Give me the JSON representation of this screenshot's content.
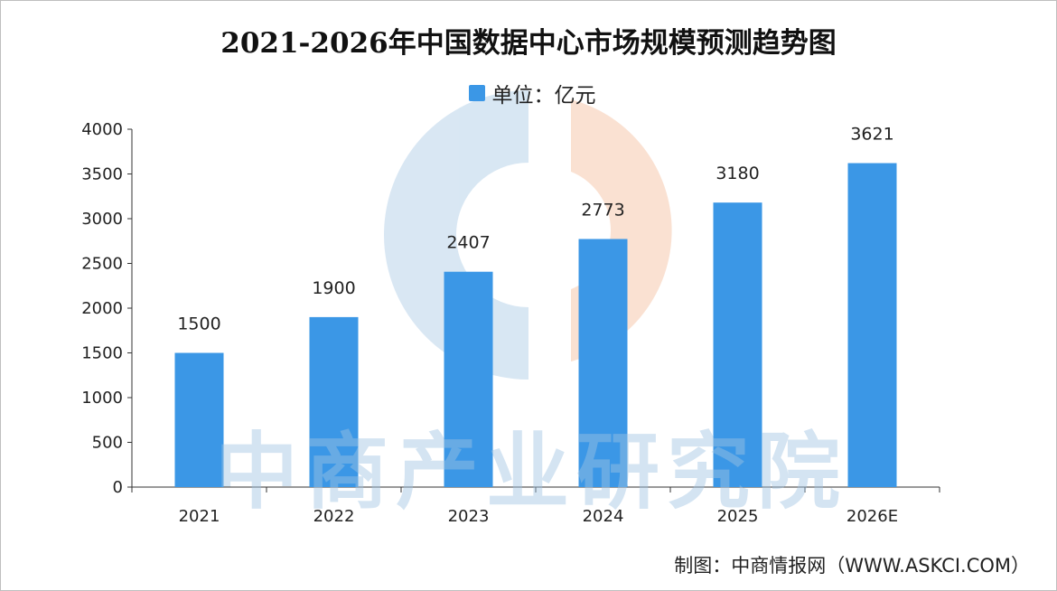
{
  "chart_data": {
    "type": "bar",
    "title": "2021-2026年中国数据中心市场规模预测趋势图",
    "legend": {
      "label": "单位：亿元",
      "position": "top-center"
    },
    "categories": [
      "2021",
      "2022",
      "2023",
      "2024",
      "2025",
      "2026E"
    ],
    "series": [
      {
        "values": [
          1500,
          1900,
          2407,
          2773,
          3180,
          3621
        ]
      }
    ],
    "data_labels": [
      "1500",
      "1900",
      "2407",
      "2773",
      "3180",
      "3621"
    ],
    "y_ticks": [
      "0",
      "500",
      "1000",
      "1500",
      "2000",
      "2500",
      "3000",
      "3500",
      "4000"
    ],
    "ylim": [
      0,
      4000
    ],
    "grid": false,
    "bar_color": "#3b97e6",
    "xlabel": "",
    "ylabel": ""
  },
  "watermark": "中商产业研究院",
  "credit": "制图：中商情报网（WWW.ASKCI.COM）"
}
